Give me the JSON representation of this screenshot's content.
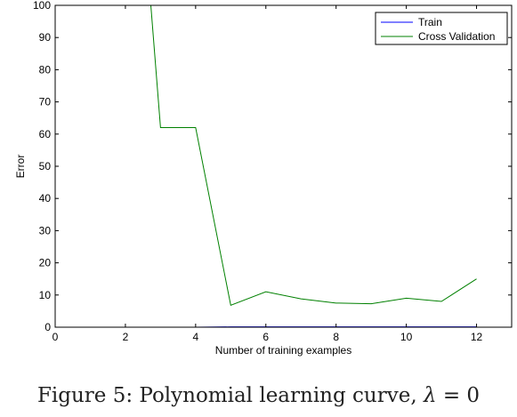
{
  "caption": {
    "prefix": "Figure 5: Polynomial learning curve,",
    "lambda_symbol": "λ",
    "equals": "= 0"
  },
  "colors": {
    "train": "#0000ff",
    "cross_validation": "#008000",
    "axes": "#000000",
    "background": "#ffffff"
  },
  "chart_data": {
    "type": "line",
    "title": "",
    "xlabel": "Number of training examples",
    "ylabel": "Error",
    "xlim": [
      0,
      13
    ],
    "ylim": [
      0,
      100
    ],
    "x_ticks": [
      0,
      2,
      4,
      6,
      8,
      10,
      12
    ],
    "y_ticks": [
      0,
      10,
      20,
      30,
      40,
      50,
      60,
      70,
      80,
      90,
      100
    ],
    "grid": false,
    "legend_position": "top-right",
    "series": [
      {
        "name": "Train",
        "color": "#0000ff",
        "x": [
          1,
          2,
          3,
          4,
          5,
          6,
          7,
          8,
          9,
          10,
          11,
          12
        ],
        "y": [
          0,
          0,
          0,
          0,
          0.1,
          0.1,
          0.1,
          0.1,
          0.1,
          0.1,
          0.1,
          0.1
        ]
      },
      {
        "name": "Cross Validation",
        "color": "#008000",
        "x": [
          2,
          3,
          4,
          5,
          6,
          7,
          8,
          9,
          10,
          11,
          12
        ],
        "y": [
          200,
          62,
          62,
          6.8,
          11,
          8.8,
          7.5,
          7.3,
          9,
          8,
          15
        ]
      }
    ]
  }
}
